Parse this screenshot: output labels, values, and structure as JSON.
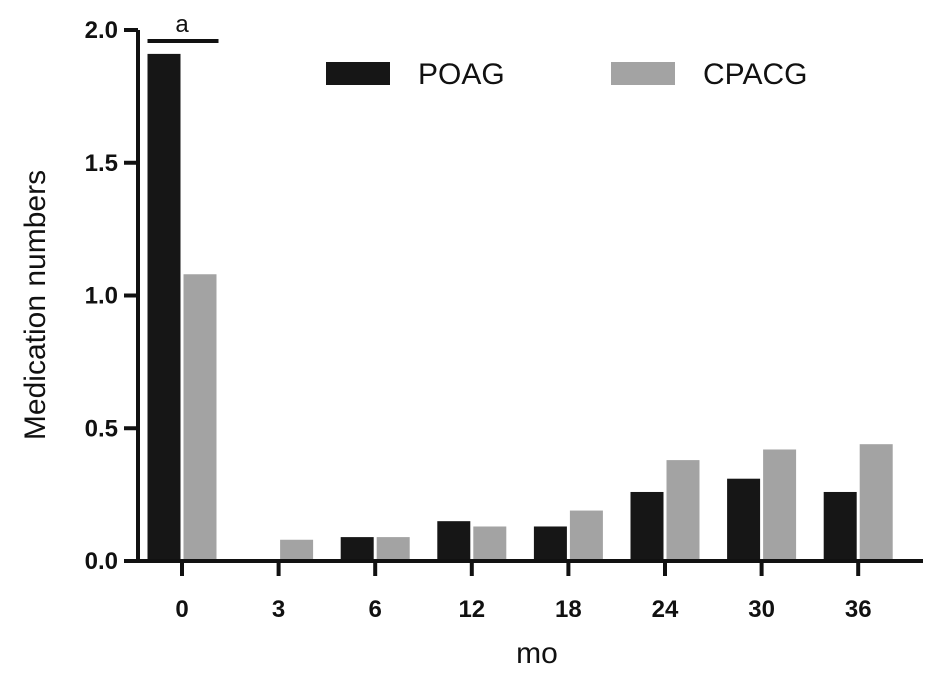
{
  "chart_data": {
    "type": "bar",
    "title": "",
    "xlabel": "mo",
    "ylabel": "Medication numbers",
    "categories": [
      "0",
      "3",
      "6",
      "12",
      "18",
      "24",
      "30",
      "36"
    ],
    "series": [
      {
        "name": "POAG",
        "color": "#161616",
        "values": [
          1.91,
          0.0,
          0.09,
          0.15,
          0.13,
          0.26,
          0.31,
          0.26
        ]
      },
      {
        "name": "CPACG",
        "color": "#a3a3a3",
        "values": [
          1.08,
          0.08,
          0.09,
          0.13,
          0.19,
          0.38,
          0.42,
          0.44
        ]
      }
    ],
    "ylim": [
      0,
      2.0
    ],
    "yticks": [
      "0.0",
      "0.5",
      "1.0",
      "1.5",
      "2.0"
    ],
    "grid": false,
    "legend_position": "top",
    "annotations": [
      {
        "text": "a",
        "category": "0",
        "kind": "significance-bracket"
      }
    ]
  }
}
